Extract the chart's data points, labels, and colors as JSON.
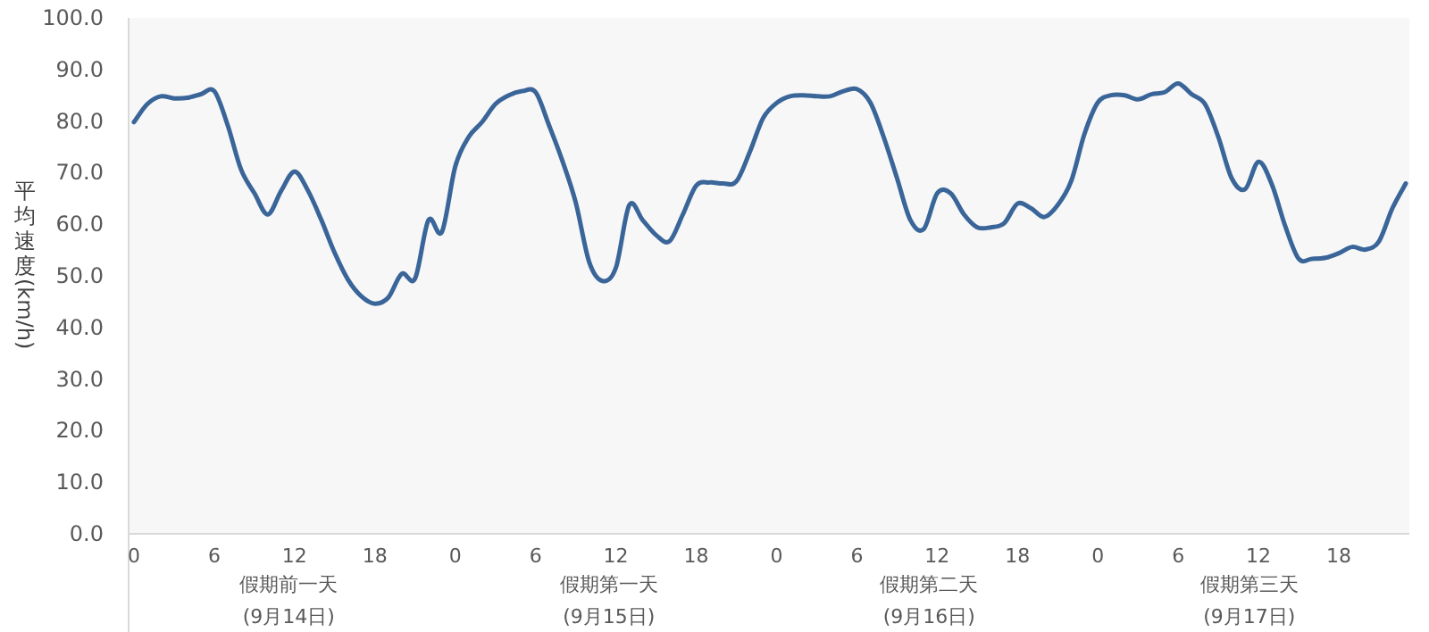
{
  "chart_data": {
    "type": "line",
    "ylabel": "平均速度(km/h)",
    "color": "#3a6599",
    "categories": [
      "0",
      null,
      null,
      null,
      null,
      null,
      "6",
      null,
      null,
      null,
      null,
      null,
      "12",
      null,
      null,
      null,
      null,
      null,
      "18",
      null,
      null,
      null,
      null,
      null,
      "0",
      null,
      null,
      null,
      null,
      null,
      "6",
      null,
      null,
      null,
      null,
      null,
      "12",
      null,
      null,
      null,
      null,
      null,
      "18",
      null,
      null,
      null,
      null,
      null,
      "0",
      null,
      null,
      null,
      null,
      null,
      "6",
      null,
      null,
      null,
      null,
      null,
      "12",
      null,
      null,
      null,
      null,
      null,
      "18",
      null,
      null,
      null,
      null,
      null,
      "0",
      null,
      null,
      null,
      null,
      null,
      "6",
      null,
      null,
      null,
      null,
      null,
      "12",
      null,
      null,
      null,
      null,
      null,
      "18",
      null,
      null,
      null,
      null,
      null
    ],
    "values": [
      79.8,
      83.3,
      84.8,
      84.4,
      84.5,
      85.2,
      85.8,
      79.2,
      70.6,
      66,
      61.9,
      66.5,
      70.2,
      66.5,
      60.8,
      54.4,
      49.2,
      46,
      44.6,
      45.8,
      50.4,
      49.5,
      60.8,
      58.5,
      71.2,
      76.9,
      79.8,
      83.3,
      85,
      85.8,
      85.6,
      79.2,
      72.3,
      64.2,
      52.7,
      49,
      51.6,
      63.7,
      60.8,
      57.9,
      56.7,
      61.9,
      67.5,
      68.1,
      67.9,
      68.3,
      74,
      80.6,
      83.5,
      84.8,
      85,
      84.8,
      84.8,
      85.8,
      86.2,
      83.6,
      76.9,
      68.9,
      60.8,
      59.1,
      66,
      66,
      61.9,
      59.4,
      59.4,
      60.2,
      64,
      63.1,
      61.4,
      63.7,
      68.3,
      77.5,
      83.6,
      85,
      85,
      84.2,
      85.2,
      85.6,
      87.3,
      85.2,
      83.3,
      76.9,
      68.9,
      66.8,
      72.1,
      67.7,
      59.6,
      53.3,
      53.3,
      53.5,
      54.4,
      55.6,
      55.1,
      56.7,
      63.1,
      67.9
    ],
    "ylim": [
      0,
      100
    ],
    "yticks": [
      {
        "value": 0,
        "label": "0.0"
      },
      {
        "value": 10,
        "label": "10.0"
      },
      {
        "value": 20,
        "label": "20.0"
      },
      {
        "value": 30,
        "label": "30.0"
      },
      {
        "value": 40,
        "label": "40.0"
      },
      {
        "value": 50,
        "label": "50.0"
      },
      {
        "value": 60,
        "label": "60.0"
      },
      {
        "value": 70,
        "label": "70.0"
      },
      {
        "value": 80,
        "label": "80.0"
      },
      {
        "value": 90,
        "label": "90.0"
      },
      {
        "value": 100,
        "label": "100.0"
      }
    ],
    "annotations": [
      "假期前一天\n(9月14日)",
      "假期第一天\n(9月15日)",
      "假期第二天\n(9月16日)",
      "假期第三天\n(9月17日)"
    ]
  }
}
